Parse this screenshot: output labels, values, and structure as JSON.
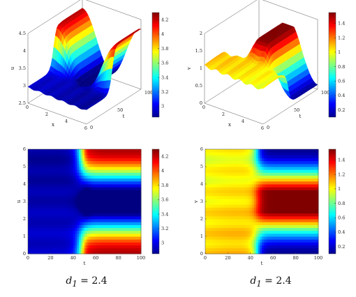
{
  "captions": [
    {
      "var": "d",
      "sub": "1",
      "rest": " = 2.4"
    },
    {
      "var": "d",
      "sub": "1",
      "rest": " = 2.4"
    }
  ],
  "chart_data": [
    {
      "type": "surface",
      "xlabel": "x",
      "ylabel": "t",
      "zlabel": "u",
      "xticks": [
        "0",
        "2",
        "4",
        "6"
      ],
      "yticks": [
        "0",
        "50",
        "100"
      ],
      "zticks": [
        "2.5",
        "3",
        "3.5",
        "4",
        "4.5"
      ],
      "colorbar_ticks": [
        "3",
        "3.2",
        "3.4",
        "3.6",
        "3.8",
        "4",
        "4.2"
      ],
      "xlim": [
        0,
        6
      ],
      "ylim": [
        0,
        100
      ],
      "zlim": [
        2.5,
        4.5
      ],
      "clim": [
        2.85,
        4.3
      ],
      "colormap": "jet"
    },
    {
      "type": "surface",
      "xlabel": "x",
      "ylabel": "t",
      "zlabel": "v",
      "xticks": [
        "0",
        "2",
        "4",
        "6"
      ],
      "yticks": [
        "0",
        "50",
        "100"
      ],
      "zticks": [
        "0",
        "0.5",
        "1",
        "1.5",
        "2"
      ],
      "colorbar_ticks": [
        "0.2",
        "0.4",
        "0.6",
        "0.8",
        "1",
        "1.2",
        "1.4"
      ],
      "xlim": [
        0,
        6
      ],
      "ylim": [
        0,
        100
      ],
      "zlim": [
        0,
        2
      ],
      "clim": [
        0.1,
        1.55
      ],
      "colormap": "jet"
    },
    {
      "type": "heatmap",
      "xlabel": "t",
      "ylabel": "u",
      "xticks": [
        "0",
        "20",
        "40",
        "60",
        "80",
        "100"
      ],
      "yticks": [
        "0",
        "1",
        "2",
        "3",
        "4",
        "5",
        "6"
      ],
      "colorbar_ticks": [
        "3",
        "3.2",
        "3.4",
        "3.6",
        "3.8",
        "4",
        "4.2"
      ],
      "xlim": [
        0,
        100
      ],
      "ylim": [
        0,
        6
      ],
      "clim": [
        2.85,
        4.3
      ],
      "colormap": "jet"
    },
    {
      "type": "heatmap",
      "xlabel": "t",
      "ylabel": "v",
      "xticks": [
        "0",
        "20",
        "40",
        "60",
        "80",
        "100"
      ],
      "yticks": [
        "0",
        "1",
        "2",
        "3",
        "4",
        "5",
        "6"
      ],
      "colorbar_ticks": [
        "0.2",
        "0.4",
        "0.6",
        "0.8",
        "1",
        "1.2",
        "1.4"
      ],
      "xlim": [
        0,
        100
      ],
      "ylim": [
        0,
        6
      ],
      "clim": [
        0.1,
        1.55
      ],
      "colormap": "jet"
    }
  ]
}
